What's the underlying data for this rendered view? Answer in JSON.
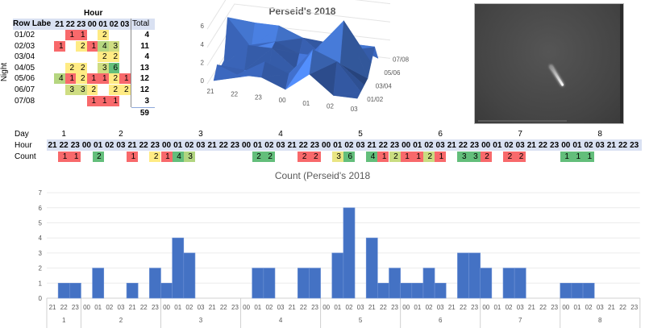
{
  "pivot": {
    "column_header": "Hour",
    "row_label_header": "Row Labe",
    "hours": [
      "21",
      "22",
      "23",
      "00",
      "01",
      "02",
      "03"
    ],
    "total_header": "Total",
    "row_axis_label": "Night",
    "rows": [
      {
        "label": "01/02",
        "values": [
          null,
          1,
          1,
          null,
          2,
          null,
          null
        ],
        "total": "4"
      },
      {
        "label": "02/03",
        "values": [
          1,
          null,
          2,
          1,
          4,
          3,
          null
        ],
        "total": "11"
      },
      {
        "label": "03/04",
        "values": [
          null,
          null,
          null,
          null,
          2,
          2,
          null
        ],
        "total": "4"
      },
      {
        "label": "04/05",
        "values": [
          null,
          2,
          2,
          null,
          3,
          6,
          null
        ],
        "total": "13"
      },
      {
        "label": "05/06",
        "values": [
          4,
          1,
          2,
          1,
          1,
          2,
          1
        ],
        "total": "12"
      },
      {
        "label": "06/07",
        "values": [
          null,
          3,
          3,
          2,
          null,
          2,
          2
        ],
        "total": "12"
      },
      {
        "label": "07/08",
        "values": [
          null,
          null,
          null,
          1,
          1,
          1,
          null
        ],
        "total": "3"
      }
    ],
    "grand_total": "59",
    "value_colors": {
      "1": "#f8696b",
      "2": "#ffeb84",
      "3": "#cfdd82",
      "4": "#b5d680",
      "6": "#63be7b"
    }
  },
  "strip": {
    "day_label": "Day",
    "hour_label": "Hour",
    "count_label": "Count",
    "colors": [
      [
        null,
        "#f8696b",
        "#f8696b"
      ],
      [
        null,
        "#63be7b",
        null,
        null,
        "#f8696b",
        null,
        "#ffeb84"
      ],
      [
        "#f8696b",
        "#63be7b",
        "#b1d580",
        null,
        null,
        null,
        null
      ],
      [
        null,
        "#63be7b",
        "#63be7b",
        null,
        null,
        "#f8696b",
        "#f8696b"
      ],
      [
        null,
        "#e9e583",
        "#63be7b",
        null,
        "#63be7b",
        "#f8696b",
        "#c9dc81"
      ],
      [
        "#f8696b",
        "#f8696b",
        "#c9dc81",
        "#f8696b",
        null,
        "#63be7b",
        "#63be7b"
      ],
      [
        "#f8696b",
        null,
        "#f8696b",
        "#f8696b",
        null,
        null,
        null
      ],
      [
        "#63be7b",
        "#63be7b",
        "#63be7b",
        null,
        null,
        null,
        null
      ]
    ]
  },
  "photo": {
    "description_icon": "meteor-photo"
  },
  "chart_data": [
    {
      "type": "surface",
      "title": "Perseid's 2018",
      "x_ticks": [
        "21",
        "22",
        "23",
        "00",
        "01",
        "02",
        "03"
      ],
      "y_ticks": [
        "01/02",
        "03/04",
        "05/06",
        "07/08"
      ],
      "z_ticks": [
        "0",
        "2",
        "4",
        "6"
      ],
      "zlim": [
        0,
        6
      ],
      "band_colors": [
        "#3a64b8",
        "#4a80e2",
        "#f08a35",
        "#a8a8a8"
      ]
    },
    {
      "type": "bar",
      "title": "Count (Perseid's 2018",
      "ylim": [
        0,
        7
      ],
      "y_ticks": [
        "0",
        "1",
        "2",
        "3",
        "4",
        "5",
        "6",
        "7"
      ],
      "grid": true,
      "bar_color": "#4472c4",
      "groups": [
        {
          "label": "1",
          "hours": [
            "21",
            "22",
            "23"
          ],
          "values": [
            0,
            1,
            1
          ]
        },
        {
          "label": "2",
          "hours": [
            "00",
            "01",
            "02",
            "03",
            "21",
            "22",
            "23"
          ],
          "values": [
            0,
            2,
            0,
            0,
            1,
            0,
            2
          ]
        },
        {
          "label": "3",
          "hours": [
            "00",
            "01",
            "02",
            "03",
            "21",
            "22",
            "23"
          ],
          "values": [
            1,
            4,
            3,
            0,
            0,
            0,
            0
          ]
        },
        {
          "label": "4",
          "hours": [
            "00",
            "01",
            "02",
            "03",
            "21",
            "22",
            "23"
          ],
          "values": [
            0,
            2,
            2,
            0,
            0,
            2,
            2
          ]
        },
        {
          "label": "5",
          "hours": [
            "00",
            "01",
            "02",
            "03",
            "21",
            "22",
            "23"
          ],
          "values": [
            0,
            3,
            6,
            0,
            4,
            1,
            2
          ]
        },
        {
          "label": "6",
          "hours": [
            "00",
            "01",
            "02",
            "03",
            "21",
            "22",
            "23"
          ],
          "values": [
            1,
            1,
            2,
            1,
            0,
            3,
            3
          ]
        },
        {
          "label": "7",
          "hours": [
            "00",
            "01",
            "02",
            "03",
            "21",
            "22",
            "23"
          ],
          "values": [
            2,
            0,
            2,
            2,
            0,
            0,
            0
          ]
        },
        {
          "label": "8",
          "hours": [
            "00",
            "01",
            "02",
            "03",
            "21",
            "22",
            "23"
          ],
          "values": [
            1,
            1,
            1,
            0,
            0,
            0,
            0
          ]
        }
      ]
    }
  ]
}
